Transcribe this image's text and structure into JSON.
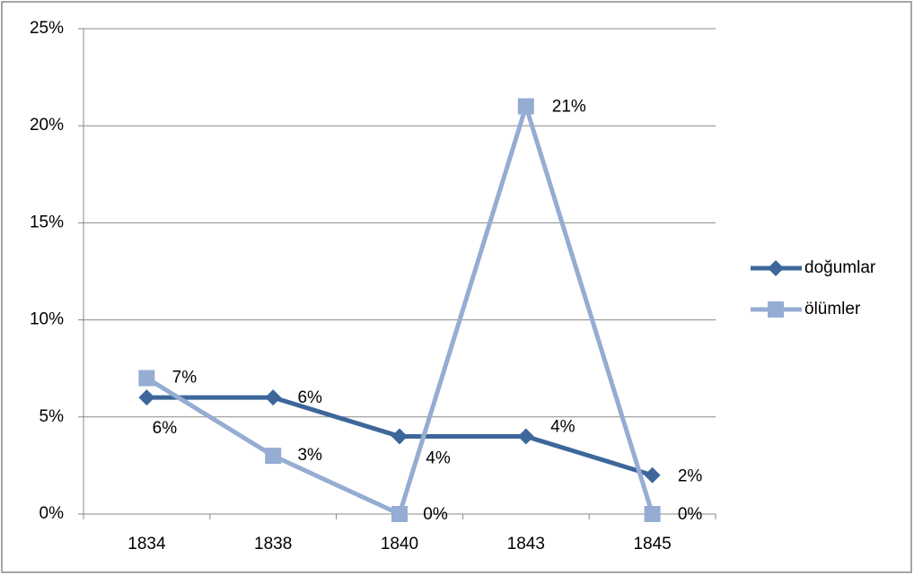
{
  "chart_data": {
    "type": "line",
    "categories": [
      "1834",
      "1838",
      "1840",
      "1843",
      "1845"
    ],
    "series": [
      {
        "name": "doğumlar",
        "color": "#3d679a",
        "marker": "diamond",
        "values": [
          6,
          6,
          4,
          4,
          2
        ],
        "value_labels": [
          "6%",
          "6%",
          "4%",
          "4%",
          "2%"
        ]
      },
      {
        "name": "ölümler",
        "color": "#95acd3",
        "marker": "square",
        "values": [
          7,
          3,
          0,
          21,
          0
        ],
        "value_labels": [
          "7%",
          "3%",
          "0%",
          "21%",
          "0%"
        ]
      }
    ],
    "ylim": [
      0,
      25
    ],
    "yticks": [
      {
        "value": 0,
        "label": "0%"
      },
      {
        "value": 5,
        "label": "5%"
      },
      {
        "value": 10,
        "label": "10%"
      },
      {
        "value": 15,
        "label": "15%"
      },
      {
        "value": 20,
        "label": "20%"
      },
      {
        "value": 25,
        "label": "25%"
      }
    ],
    "grid": true,
    "legend": "right"
  }
}
